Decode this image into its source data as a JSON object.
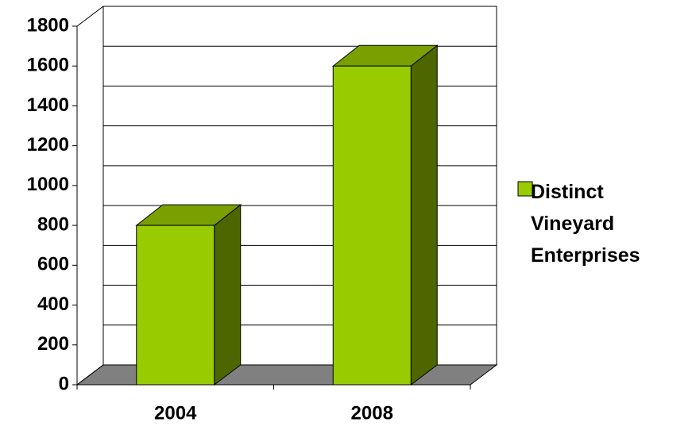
{
  "chart_data": {
    "type": "bar",
    "categories": [
      "2004",
      "2008"
    ],
    "series": [
      {
        "name": "Distinct Vineyard Enterprises",
        "color": "#99cc00",
        "values": [
          800,
          1600
        ]
      }
    ],
    "ylim": [
      0,
      1800
    ],
    "yticks": [
      0,
      200,
      400,
      600,
      800,
      1000,
      1200,
      1400,
      1600,
      1800
    ],
    "grid": true,
    "legend": "right"
  }
}
